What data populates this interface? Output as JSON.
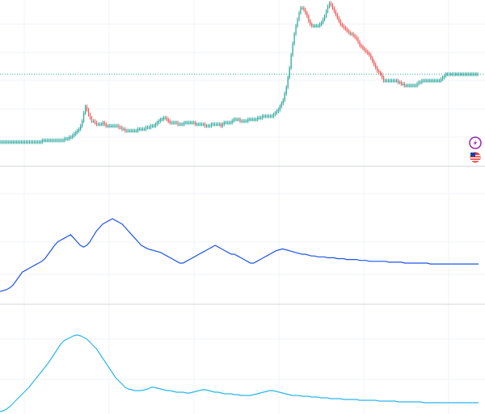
{
  "chart_data": [
    {
      "type": "candlestick",
      "title": "",
      "xlabel": "",
      "ylabel": "",
      "ylim": [
        0,
        100
      ],
      "current_price_line": 54,
      "colors": {
        "up": "#26a69a",
        "down": "#ef5350",
        "price_line": "#26a69a"
      },
      "markers": [
        {
          "name": "flash-icon",
          "color": "#9c27b0"
        },
        {
          "name": "us-flag-icon",
          "color": "#e53935"
        }
      ],
      "x": [
        0,
        1,
        2,
        3,
        4,
        5,
        6,
        7,
        8,
        9,
        10,
        11,
        12,
        13,
        14,
        15,
        16,
        17,
        18,
        19,
        20,
        21,
        22,
        23,
        24,
        25,
        26,
        27,
        28,
        29,
        30,
        31,
        32,
        33,
        34,
        35,
        36,
        37,
        38,
        39,
        40,
        41,
        42,
        43,
        44,
        45,
        46,
        47,
        48,
        49,
        50,
        51,
        52,
        53,
        54,
        55,
        56,
        57,
        58,
        59,
        60,
        61,
        62,
        63,
        64,
        65,
        66,
        67,
        68,
        69,
        70,
        71,
        72,
        73,
        74,
        75,
        76,
        77,
        78,
        79,
        80,
        81,
        82,
        83,
        84,
        85,
        86,
        87,
        88,
        89,
        90,
        91,
        92,
        93,
        94,
        95,
        96,
        97,
        98,
        99,
        100,
        101,
        102,
        103,
        104,
        105,
        106,
        107,
        108,
        109,
        110,
        111,
        112,
        113,
        114,
        115,
        116,
        117,
        118,
        119,
        120,
        121,
        122,
        123,
        124,
        125,
        126,
        127,
        128,
        129,
        130,
        131,
        132,
        133,
        134,
        135,
        136,
        137,
        138,
        139,
        140,
        141,
        142,
        143,
        144,
        145,
        146,
        147,
        148,
        149,
        150,
        151,
        152,
        153,
        154,
        155,
        156,
        157,
        158,
        159,
        160,
        161,
        162,
        163,
        164,
        165,
        166,
        167,
        168,
        169,
        170,
        171,
        172,
        173,
        174,
        175,
        176,
        177,
        178,
        179,
        180,
        181,
        182,
        183,
        184,
        185,
        186,
        187,
        188,
        189,
        190,
        191,
        192,
        193,
        194,
        195,
        196,
        197,
        198,
        199,
        200,
        201,
        202,
        203,
        204,
        205,
        206,
        207,
        208,
        209,
        210,
        211,
        212,
        213,
        214,
        215,
        216,
        217,
        218,
        219,
        220,
        221,
        222,
        223,
        224,
        225,
        226,
        227,
        228,
        229,
        230,
        231,
        232,
        233,
        234,
        235,
        236,
        237,
        238,
        239,
        240,
        241,
        242,
        243,
        244,
        245,
        246,
        247,
        248,
        249,
        250,
        251,
        252,
        253,
        254,
        255,
        256,
        257,
        258,
        259,
        260,
        261,
        262,
        263,
        264,
        265,
        266,
        267,
        268,
        269,
        270,
        271,
        272,
        273,
        274,
        275,
        276,
        277,
        278,
        279,
        280,
        281,
        282,
        283,
        284,
        285,
        286,
        287,
        288,
        289,
        290,
        291,
        292,
        293,
        294,
        295,
        296,
        297,
        298,
        299
      ],
      "close": [
        12,
        12,
        12,
        12,
        12,
        12,
        12,
        12,
        12,
        12,
        12,
        12,
        12,
        12,
        12,
        12,
        12,
        12,
        12,
        12,
        12,
        12,
        12,
        12,
        12,
        12,
        13,
        13,
        13,
        13,
        13,
        13,
        13,
        13,
        13,
        13,
        13,
        13,
        13,
        13,
        14,
        14,
        14,
        15,
        15,
        16,
        17,
        18,
        19,
        20,
        22,
        25,
        30,
        34,
        32,
        29,
        27,
        25,
        25,
        24,
        23,
        23,
        23,
        23,
        24,
        23,
        22,
        22,
        22,
        22,
        22,
        22,
        22,
        22,
        21,
        21,
        20,
        20,
        19,
        19,
        19,
        19,
        19,
        19,
        19,
        19,
        20,
        20,
        20,
        20,
        20,
        21,
        21,
        21,
        22,
        22,
        22,
        23,
        24,
        25,
        26,
        26,
        27,
        27,
        26,
        25,
        24,
        24,
        24,
        24,
        24,
        23,
        23,
        23,
        23,
        24,
        24,
        24,
        24,
        24,
        24,
        24,
        23,
        23,
        23,
        23,
        23,
        23,
        22,
        22,
        22,
        22,
        23,
        23,
        23,
        23,
        23,
        23,
        22,
        23,
        24,
        24,
        24,
        24,
        24,
        25,
        26,
        26,
        26,
        26,
        25,
        25,
        25,
        25,
        25,
        26,
        26,
        26,
        26,
        26,
        26,
        27,
        27,
        27,
        28,
        28,
        28,
        28,
        28,
        28,
        28,
        29,
        30,
        31,
        32,
        34,
        36,
        38,
        42,
        46,
        52,
        58,
        66,
        73,
        79,
        84,
        88,
        92,
        95,
        95,
        94,
        92,
        90,
        87,
        85,
        84,
        84,
        84,
        84,
        84,
        85,
        86,
        88,
        90,
        93,
        96,
        98,
        97,
        95,
        93,
        91,
        89,
        87,
        85,
        84,
        83,
        82,
        81,
        80,
        79,
        79,
        78,
        77,
        76,
        74,
        72,
        71,
        70,
        69,
        68,
        67,
        66,
        64,
        62,
        60,
        58,
        56,
        55,
        54,
        52,
        50,
        50,
        50,
        50,
        50,
        50,
        50,
        50,
        50,
        49,
        49,
        48,
        48,
        47,
        47,
        47,
        47,
        47,
        47,
        47,
        47,
        48,
        49,
        49,
        50,
        50,
        50,
        50,
        50,
        50,
        50,
        50,
        50,
        50,
        50,
        50,
        51,
        52,
        53,
        54,
        54,
        54,
        54,
        54,
        54,
        54,
        54,
        54,
        54,
        54,
        54,
        54,
        54,
        54,
        54,
        54,
        54,
        54,
        54,
        54
      ]
    },
    {
      "type": "line",
      "title": "",
      "color": "#1e53e5",
      "ylim": [
        0,
        100
      ],
      "x": [
        0,
        1,
        2,
        3,
        4,
        5,
        6,
        7,
        8,
        9,
        10,
        11,
        12,
        13,
        14,
        15,
        16,
        17,
        18,
        19,
        20,
        21,
        22,
        23,
        24,
        25,
        26,
        27,
        28,
        29,
        30,
        31,
        32,
        33,
        34,
        35,
        36,
        37,
        38,
        39,
        40,
        41,
        42,
        43,
        44,
        45,
        46,
        47,
        48,
        49,
        50,
        51,
        52,
        53,
        54,
        55,
        56,
        57,
        58,
        59,
        60,
        61,
        62,
        63,
        64,
        65,
        66,
        67,
        68,
        69,
        70,
        71,
        72,
        73,
        74,
        75,
        76,
        77,
        78,
        79,
        80,
        81,
        82,
        83,
        84,
        85,
        86,
        87,
        88,
        89,
        90,
        91,
        92,
        93,
        94,
        95,
        96,
        97,
        98,
        99,
        100,
        101,
        102,
        103,
        104,
        105,
        106,
        107,
        108,
        109,
        110,
        111,
        112,
        113,
        114,
        115,
        116,
        117,
        118,
        119,
        120,
        121,
        122,
        123,
        124,
        125,
        126,
        127,
        128,
        129,
        130,
        131,
        132,
        133,
        134,
        135,
        136,
        137,
        138,
        139,
        140,
        141,
        142,
        143,
        144,
        145,
        146,
        147,
        148,
        149
      ],
      "values": [
        8,
        9,
        10,
        12,
        15,
        20,
        25,
        30,
        32,
        34,
        36,
        38,
        40,
        42,
        45,
        50,
        55,
        60,
        64,
        66,
        68,
        70,
        72,
        68,
        64,
        60,
        58,
        60,
        64,
        70,
        76,
        80,
        84,
        86,
        88,
        90,
        88,
        86,
        84,
        80,
        76,
        72,
        68,
        64,
        60,
        58,
        56,
        55,
        54,
        53,
        52,
        50,
        48,
        46,
        44,
        42,
        40,
        40,
        42,
        44,
        46,
        48,
        50,
        52,
        54,
        56,
        58,
        60,
        58,
        56,
        54,
        52,
        50,
        50,
        48,
        46,
        44,
        42,
        40,
        40,
        42,
        44,
        46,
        48,
        50,
        52,
        54,
        55,
        56,
        55,
        54,
        53,
        52,
        51,
        50,
        50,
        49,
        48,
        48,
        47,
        47,
        47,
        46,
        46,
        46,
        45,
        45,
        45,
        44,
        44,
        44,
        44,
        43,
        43,
        43,
        42,
        42,
        42,
        42,
        42,
        42,
        41,
        41,
        41,
        41,
        41,
        40,
        40,
        40,
        40,
        40,
        40,
        40,
        40,
        39,
        39,
        39,
        39,
        39,
        39,
        39,
        39,
        39,
        39,
        39,
        39,
        39,
        39,
        39,
        39
      ]
    },
    {
      "type": "line",
      "title": "",
      "color": "#29b6e9",
      "ylim": [
        0,
        100
      ],
      "x": [
        0,
        1,
        2,
        3,
        4,
        5,
        6,
        7,
        8,
        9,
        10,
        11,
        12,
        13,
        14,
        15,
        16,
        17,
        18,
        19,
        20,
        21,
        22,
        23,
        24,
        25,
        26,
        27,
        28,
        29,
        30,
        31,
        32,
        33,
        34,
        35,
        36,
        37,
        38,
        39,
        40,
        41,
        42,
        43,
        44,
        45,
        46,
        47,
        48,
        49,
        50,
        51,
        52,
        53,
        54,
        55,
        56,
        57,
        58,
        59,
        60,
        61,
        62,
        63,
        64,
        65,
        66,
        67,
        68,
        69,
        70,
        71,
        72,
        73,
        74,
        75,
        76,
        77,
        78,
        79,
        80,
        81,
        82,
        83,
        84,
        85,
        86,
        87,
        88,
        89,
        90,
        91,
        92,
        93,
        94,
        95,
        96,
        97,
        98,
        99,
        100,
        101,
        102,
        103,
        104,
        105,
        106,
        107,
        108,
        109,
        110,
        111,
        112,
        113,
        114,
        115,
        116,
        117,
        118,
        119,
        120,
        121,
        122,
        123,
        124,
        125,
        126,
        127,
        128,
        129,
        130,
        131,
        132,
        133,
        134,
        135,
        136,
        137,
        138,
        139,
        140,
        141,
        142,
        143,
        144,
        145,
        146,
        147,
        148,
        149
      ],
      "values": [
        0,
        1,
        3,
        6,
        10,
        14,
        18,
        22,
        26,
        30,
        35,
        40,
        45,
        50,
        55,
        60,
        66,
        72,
        78,
        84,
        88,
        90,
        92,
        94,
        95,
        94,
        92,
        90,
        86,
        82,
        78,
        72,
        66,
        60,
        54,
        48,
        42,
        38,
        34,
        30,
        28,
        27,
        26,
        26,
        26,
        27,
        28,
        30,
        30,
        29,
        28,
        27,
        26,
        26,
        25,
        24,
        24,
        24,
        23,
        23,
        24,
        25,
        26,
        27,
        27,
        26,
        25,
        24,
        24,
        23,
        22,
        22,
        22,
        21,
        21,
        20,
        20,
        20,
        20,
        21,
        22,
        23,
        24,
        25,
        26,
        26,
        25,
        24,
        23,
        22,
        21,
        20,
        20,
        20,
        19,
        19,
        19,
        18,
        18,
        18,
        17,
        17,
        17,
        16,
        16,
        16,
        16,
        15,
        15,
        15,
        15,
        15,
        14,
        14,
        14,
        14,
        14,
        14,
        13,
        13,
        13,
        13,
        13,
        13,
        12,
        12,
        12,
        12,
        12,
        12,
        12,
        12,
        11,
        11,
        11,
        11,
        11,
        11,
        11,
        11,
        11,
        11,
        11,
        11,
        11,
        11,
        11,
        11,
        11,
        11
      ]
    }
  ]
}
